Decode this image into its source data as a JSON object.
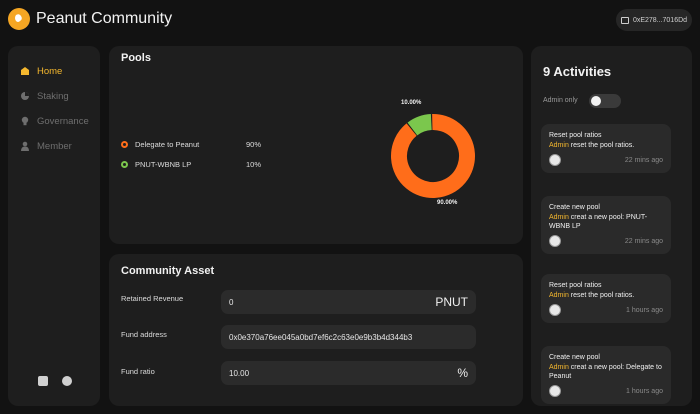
{
  "header": {
    "title": "Peanut Community",
    "wallet": "0xE278...7016Dd"
  },
  "sidebar": {
    "items": [
      {
        "label": "Home",
        "icon": "home-icon",
        "active": true
      },
      {
        "label": "Staking",
        "icon": "pie-chart-icon",
        "active": false
      },
      {
        "label": "Governance",
        "icon": "lightbulb-icon",
        "active": false
      },
      {
        "label": "Member",
        "icon": "user-icon",
        "active": false
      }
    ],
    "bottom_icons": [
      "discord-icon",
      "twitter-icon"
    ]
  },
  "pools": {
    "title": "Pools",
    "items": [
      {
        "name": "Delegate to Peanut",
        "pct": "90%",
        "color": "#ff6d1a"
      },
      {
        "name": "PNUT-WBNB LP",
        "pct": "10%",
        "color": "#7bc74d"
      }
    ],
    "chart_data": {
      "type": "pie",
      "categories": [
        "Delegate to Peanut",
        "PNUT-WBNB LP"
      ],
      "values": [
        90,
        10
      ],
      "labels": [
        "90.00%",
        "10.00%"
      ],
      "colors": [
        "#ff6d1a",
        "#7bc74d"
      ]
    }
  },
  "asset": {
    "title": "Community Asset",
    "fields": [
      {
        "label": "Retained Revenue",
        "value": "0",
        "unit": "PNUT"
      },
      {
        "label": "Fund address",
        "value": "0x0e370a76ee045a0bd7ef6c2c63e0e9b3b4d344b3",
        "unit": ""
      },
      {
        "label": "Fund ratio",
        "value": "10.00",
        "unit": "%"
      }
    ]
  },
  "activities": {
    "title": "9 Activities",
    "admin_only_label": "Admin only",
    "admin_only": false,
    "items": [
      {
        "title": "Reset pool ratios",
        "actor": "Admin",
        "desc": " reset the pool ratios.",
        "time": "22 mins ago"
      },
      {
        "title": "Create new pool",
        "actor": "Admin",
        "desc": " creat a new pool: PNUT-WBNB LP",
        "time": "22 mins ago"
      },
      {
        "title": "Reset pool ratios",
        "actor": "Admin",
        "desc": " reset the pool ratios.",
        "time": "1 hours ago"
      },
      {
        "title": "Create new pool",
        "actor": "Admin",
        "desc": " creat a new pool: Delegate to Peanut",
        "time": "1 hours ago"
      }
    ]
  }
}
